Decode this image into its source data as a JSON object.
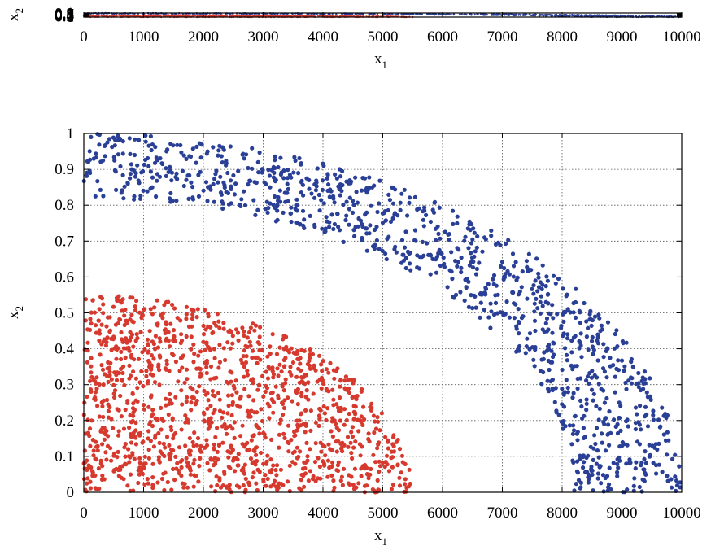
{
  "chart_data": [
    {
      "type": "scatter",
      "title": "",
      "xlabel": "x",
      "xlabel_sub": "1",
      "ylabel": "x",
      "ylabel_sub": "2",
      "xlim": [
        0,
        10000
      ],
      "ylim": [
        0,
        1
      ],
      "xticks": [
        "0",
        "1000",
        "2000",
        "3000",
        "4000",
        "5000",
        "6000",
        "7000",
        "8000",
        "9000",
        "10000"
      ],
      "yticks": [
        "0",
        "0.1",
        "0.2",
        "0.3",
        "0.4",
        "0.5",
        "0.6",
        "0.7",
        "0.8",
        "0.9",
        "1"
      ],
      "grid": false,
      "note": "Thin panel with overlapping y tick labels; same two point sets compressed into a strip",
      "series": [
        {
          "color": "#d63a2f",
          "region": {
            "shape": "quarter-disk",
            "x_max": 5500,
            "y_max": 0.55,
            "count": 700
          }
        },
        {
          "color": "#2a3f96",
          "region": {
            "shape": "quarter-annulus",
            "x_inner": 8200,
            "x_outer": 10000,
            "y_inner": 0.82,
            "y_outer": 1.0,
            "count": 650
          }
        }
      ]
    },
    {
      "type": "scatter",
      "title": "",
      "xlabel": "x",
      "xlabel_sub": "1",
      "ylabel": "x",
      "ylabel_sub": "2",
      "xlim": [
        0,
        10000
      ],
      "ylim": [
        0,
        1
      ],
      "xticks": [
        "0",
        "1000",
        "2000",
        "3000",
        "4000",
        "5000",
        "6000",
        "7000",
        "8000",
        "9000",
        "10000"
      ],
      "yticks": [
        "0",
        "0.1",
        "0.2",
        "0.3",
        "0.4",
        "0.5",
        "0.6",
        "0.7",
        "0.8",
        "0.9",
        "1"
      ],
      "grid": true,
      "series": [
        {
          "color": "#d63a2f",
          "region": {
            "shape": "quarter-disk",
            "x_max": 5500,
            "y_max": 0.55,
            "count": 1300
          }
        },
        {
          "color": "#2a3f96",
          "region": {
            "shape": "quarter-annulus",
            "x_inner": 8200,
            "x_outer": 10000,
            "y_inner": 0.82,
            "y_outer": 1.0,
            "count": 1100
          }
        }
      ]
    }
  ]
}
